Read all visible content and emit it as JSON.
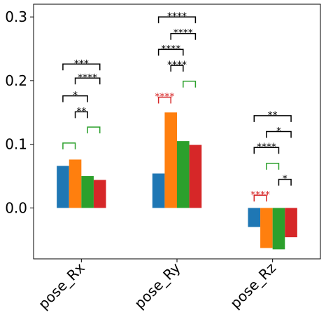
{
  "chart_data": {
    "type": "bar",
    "title": "",
    "xlabel": "",
    "ylabel": "",
    "categories": [
      "pose_Rx",
      "pose_Ry",
      "pose_Rz"
    ],
    "ylim": [
      -0.08,
      0.32
    ],
    "yticks": [
      0.0,
      0.1,
      0.2,
      0.3
    ],
    "ytick_labels": [
      "0.0",
      "0.1",
      "0.2",
      "0.3"
    ],
    "grid": false,
    "legend": "none",
    "series": [
      {
        "color": "#1f77b4",
        "values": [
          0.066,
          0.054,
          -0.03
        ]
      },
      {
        "color": "#ff7f0e",
        "values": [
          0.076,
          0.15,
          -0.063
        ]
      },
      {
        "color": "#2ca02c",
        "values": [
          0.05,
          0.105,
          -0.065
        ]
      },
      {
        "color": "#d62728",
        "values": [
          0.044,
          0.099,
          -0.046
        ]
      }
    ],
    "significance": [
      {
        "category": 0,
        "from": 0,
        "to": 3,
        "label": "***",
        "y": 0.226,
        "color": "#000000"
      },
      {
        "category": 0,
        "from": 1,
        "to": 3,
        "label": "****",
        "y": 0.204,
        "color": "#000000"
      },
      {
        "category": 0,
        "from": 0,
        "to": 2,
        "label": "*",
        "y": 0.176,
        "color": "#000000"
      },
      {
        "category": 0,
        "from": 1,
        "to": 2,
        "label": "**",
        "y": 0.151,
        "color": "#000000"
      },
      {
        "category": 0,
        "from": 2,
        "to": 3,
        "label": "",
        "y": 0.127,
        "color": "#2ca02c"
      },
      {
        "category": 0,
        "from": 0,
        "to": 1,
        "label": "",
        "y": 0.102,
        "color": "#2ca02c"
      },
      {
        "category": 1,
        "from": 0,
        "to": 3,
        "label": "****",
        "y": 0.3,
        "color": "#000000"
      },
      {
        "category": 1,
        "from": 1,
        "to": 3,
        "label": "****",
        "y": 0.274,
        "color": "#000000"
      },
      {
        "category": 1,
        "from": 0,
        "to": 2,
        "label": "****",
        "y": 0.249,
        "color": "#000000"
      },
      {
        "category": 1,
        "from": 1,
        "to": 2,
        "label": "****",
        "y": 0.224,
        "color": "#000000"
      },
      {
        "category": 1,
        "from": 2,
        "to": 3,
        "label": "",
        "y": 0.199,
        "color": "#2ca02c"
      },
      {
        "category": 1,
        "from": 0,
        "to": 1,
        "label": "****",
        "y": 0.174,
        "color": "#d62728"
      },
      {
        "category": 2,
        "from": 0,
        "to": 3,
        "label": "**",
        "y": 0.145,
        "color": "#000000"
      },
      {
        "category": 2,
        "from": 1,
        "to": 3,
        "label": "*",
        "y": 0.12,
        "color": "#000000"
      },
      {
        "category": 2,
        "from": 0,
        "to": 2,
        "label": "****",
        "y": 0.095,
        "color": "#000000"
      },
      {
        "category": 2,
        "from": 1,
        "to": 2,
        "label": "",
        "y": 0.07,
        "color": "#2ca02c"
      },
      {
        "category": 2,
        "from": 2,
        "to": 3,
        "label": "*",
        "y": 0.045,
        "color": "#000000"
      },
      {
        "category": 2,
        "from": 0,
        "to": 1,
        "label": "****",
        "y": 0.02,
        "color": "#d62728"
      }
    ]
  }
}
